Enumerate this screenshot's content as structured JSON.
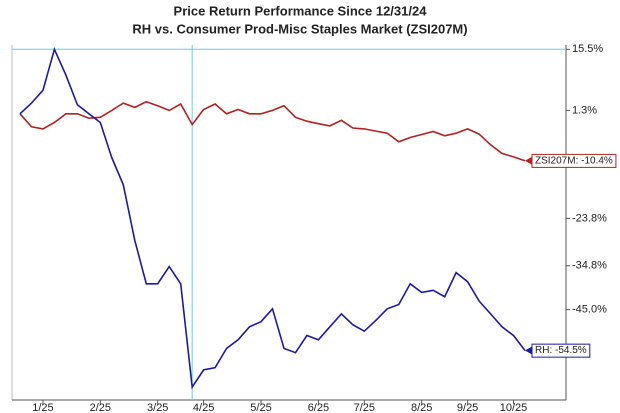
{
  "chart_data": {
    "type": "line",
    "title": "Price Return Performance Since 12/31/24",
    "subtitle": "RH  vs.  Consumer Prod-Misc Staples Market (ZSI207M)",
    "categories": [
      null,
      null,
      "1/25",
      null,
      null,
      null,
      null,
      "2/25",
      null,
      null,
      null,
      null,
      "3/25",
      null,
      null,
      null,
      "4/25",
      null,
      null,
      null,
      null,
      "5/25",
      null,
      null,
      null,
      null,
      "6/25",
      null,
      null,
      null,
      "7/25",
      null,
      null,
      null,
      null,
      "8/25",
      null,
      null,
      null,
      "9/25",
      null,
      null,
      null,
      "10/25",
      null
    ],
    "series": [
      {
        "color": "#b22222",
        "end_label": "ZSI207M: -10.4%",
        "values": [
          0.5,
          -2.5,
          -3,
          -1.5,
          0.5,
          0.5,
          -0.5,
          -0.3,
          1.3,
          3,
          2,
          3.3,
          2.4,
          1.3,
          2.8,
          -2,
          1.5,
          2.8,
          0.5,
          1.5,
          0.5,
          0.5,
          1.3,
          2.4,
          -0.3,
          -1.2,
          -1.8,
          -2.3,
          -1,
          -2.8,
          -3,
          -3.5,
          -4,
          -6,
          -5,
          -4.3,
          -3.6,
          -4.6,
          -4,
          -3,
          -4.2,
          -6.7,
          -8.7,
          -9.5,
          -10.4
        ]
      },
      {
        "color": "#1a1aa6",
        "end_label": "RH: -54.5%",
        "values": [
          0.5,
          3,
          6,
          15.5,
          9.5,
          2.6,
          0.5,
          -1.5,
          -9.7,
          -16,
          -28.9,
          -39,
          -39,
          -35,
          -39,
          -63,
          -59,
          -58.5,
          -54,
          -52,
          -49,
          -47.8,
          -44.8,
          -54,
          -55,
          -51,
          -52,
          -49,
          -46,
          -48.5,
          -50,
          -47.5,
          -44.8,
          -43.8,
          -39,
          -41,
          -40.5,
          -42,
          -36.4,
          -38.5,
          -43,
          -46,
          -49,
          -51,
          -54.5
        ]
      }
    ],
    "ylim": [
      -66,
      16.5
    ],
    "yticks": [
      {
        "value": 15.5,
        "label": "15.5%"
      },
      {
        "value": 1.3,
        "label": "1.3%"
      },
      {
        "value": -23.8,
        "label": "-23.8%"
      },
      {
        "value": -34.8,
        "label": "-34.8%"
      },
      {
        "value": -45.0,
        "label": "-45.0%"
      }
    ]
  }
}
